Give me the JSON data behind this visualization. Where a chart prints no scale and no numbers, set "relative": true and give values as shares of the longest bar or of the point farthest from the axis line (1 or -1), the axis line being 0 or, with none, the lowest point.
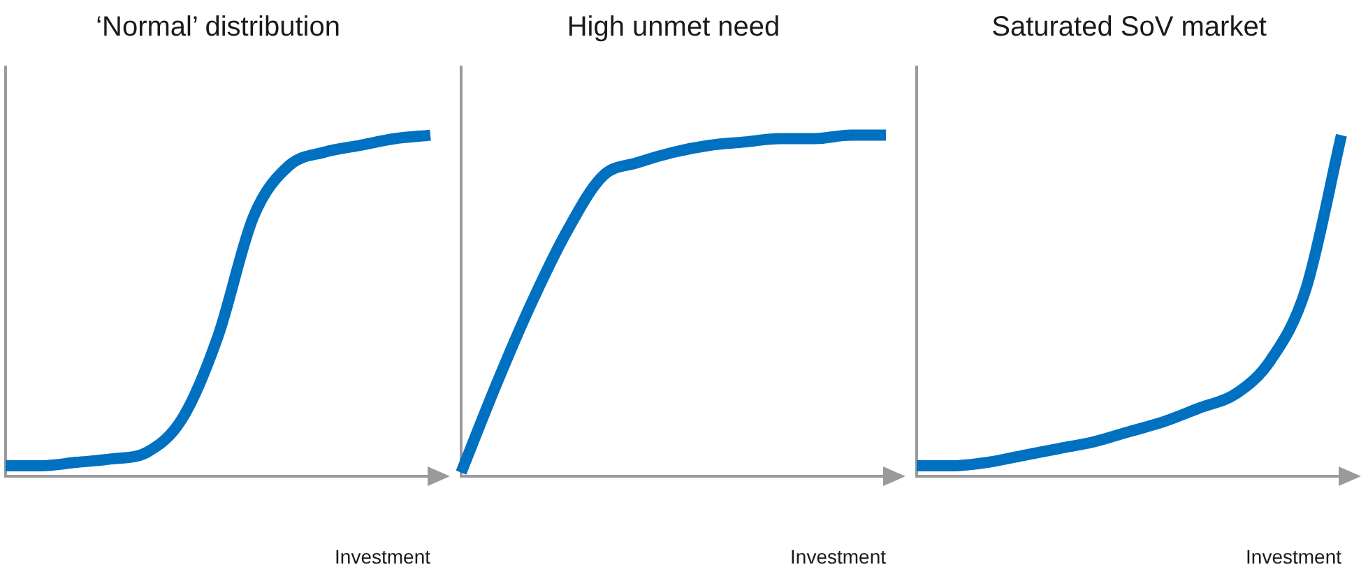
{
  "chart_data": [
    {
      "type": "line",
      "title": "‘Normal’ distribution",
      "xlabel": "Investment",
      "relative": true,
      "legend": false,
      "marker": "none",
      "categories": [
        null,
        null,
        null,
        null,
        null,
        null,
        null,
        null,
        null,
        null,
        null,
        null,
        null
      ],
      "series": [
        {
          "color": "#0070c0",
          "values": [
            0.03,
            0.03,
            0.04,
            0.05,
            0.07,
            0.17,
            0.41,
            0.76,
            0.91,
            0.95,
            0.97,
            0.99,
            1
          ]
        }
      ]
    },
    {
      "type": "line",
      "title": "High unmet need",
      "xlabel": "Investment",
      "relative": true,
      "legend": false,
      "marker": "none",
      "categories": [
        null,
        null,
        null,
        null,
        null,
        null,
        null,
        null,
        null,
        null,
        null,
        null,
        null
      ],
      "series": [
        {
          "color": "#0070c0",
          "values": [
            0.01,
            0.27,
            0.51,
            0.72,
            0.88,
            0.92,
            0.95,
            0.97,
            0.98,
            0.99,
            0.99,
            1,
            1
          ]
        }
      ]
    },
    {
      "type": "line",
      "title": "Saturated SoV market",
      "xlabel": "Investment",
      "relative": true,
      "legend": false,
      "marker": "none",
      "categories": [
        null,
        null,
        null,
        null,
        null,
        null,
        null,
        null,
        null,
        null,
        null,
        null,
        null
      ],
      "series": [
        {
          "color": "#0070c0",
          "values": [
            0.03,
            0.03,
            0.04,
            0.06,
            0.08,
            0.1,
            0.13,
            0.16,
            0.2,
            0.24,
            0.34,
            0.55,
            1
          ]
        }
      ]
    }
  ]
}
